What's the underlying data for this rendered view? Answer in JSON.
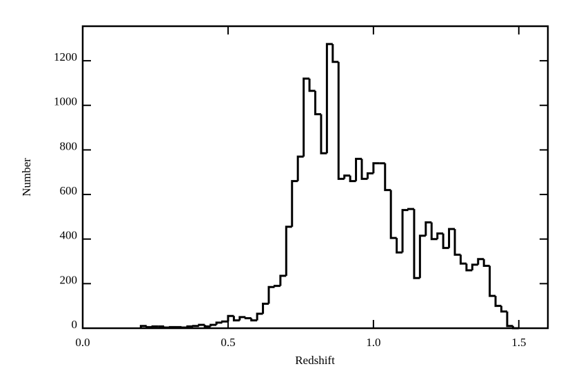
{
  "chart_data": {
    "type": "histogram",
    "xlabel": "Redshift",
    "ylabel": "Number",
    "bins": [
      0.2,
      0.22,
      0.24,
      0.26,
      0.28,
      0.3,
      0.32,
      0.34,
      0.36,
      0.38,
      0.4,
      0.42,
      0.44,
      0.46,
      0.48,
      0.5,
      0.52,
      0.54,
      0.56,
      0.58,
      0.6,
      0.62,
      0.64,
      0.66,
      0.68,
      0.7,
      0.72,
      0.74,
      0.76,
      0.78,
      0.8,
      0.82,
      0.84,
      0.86,
      0.88,
      0.9,
      0.92,
      0.94,
      0.96,
      0.98,
      1.0,
      1.02,
      1.04,
      1.06,
      1.08,
      1.1,
      1.12,
      1.14,
      1.16,
      1.18,
      1.2,
      1.22,
      1.24,
      1.26,
      1.28,
      1.3,
      1.32,
      1.34,
      1.36,
      1.38,
      1.4,
      1.42,
      1.44,
      1.46,
      1.48,
      1.5
    ],
    "values": [
      10,
      5,
      8,
      8,
      3,
      5,
      5,
      3,
      8,
      10,
      15,
      8,
      15,
      25,
      30,
      55,
      35,
      50,
      45,
      35,
      65,
      110,
      185,
      190,
      235,
      455,
      660,
      770,
      1120,
      1065,
      960,
      785,
      1275,
      1195,
      670,
      685,
      660,
      760,
      670,
      695,
      740,
      740,
      620,
      405,
      340,
      530,
      535,
      225,
      415,
      475,
      400,
      425,
      360,
      445,
      330,
      290,
      260,
      285,
      310,
      280,
      145,
      100,
      75,
      10,
      0
    ],
    "color": "#000000",
    "xlim": [
      0,
      1.6
    ],
    "ylim": [
      0,
      1355
    ],
    "xticks": [
      {
        "value": 0,
        "label": "0.0"
      },
      {
        "value": 0.5,
        "label": "0.5"
      },
      {
        "value": 1,
        "label": "1.0"
      },
      {
        "value": 1.5,
        "label": "1.5"
      }
    ],
    "yticks": [
      0,
      200,
      400,
      600,
      800,
      1000,
      1200
    ]
  }
}
